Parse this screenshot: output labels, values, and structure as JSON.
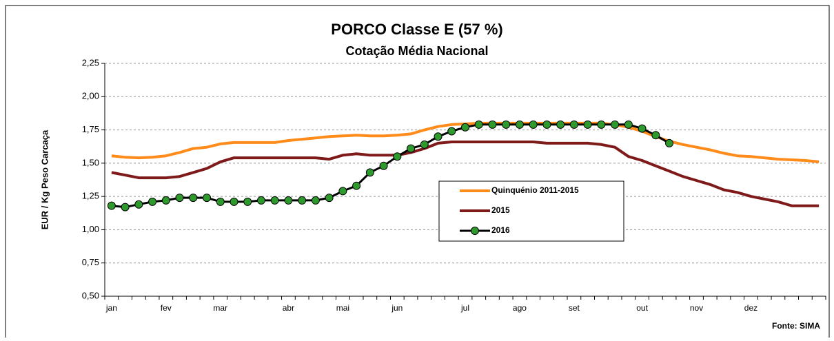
{
  "chart_data": {
    "type": "line",
    "title": "PORCO Classe E (57 %)",
    "subtitle": "Cotação Média Nacional",
    "y_label": "EUR / Kg Peso Carcaça",
    "source": "Fonte: SIMA",
    "categories": [
      "jan",
      null,
      null,
      null,
      "fev",
      null,
      null,
      null,
      "mar",
      null,
      null,
      null,
      null,
      "abr",
      null,
      null,
      null,
      "mai",
      null,
      null,
      null,
      "jun",
      null,
      null,
      null,
      null,
      "jul",
      null,
      null,
      null,
      "ago",
      null,
      null,
      null,
      "set",
      null,
      null,
      null,
      null,
      "out",
      null,
      null,
      null,
      "nov",
      null,
      null,
      null,
      "dez",
      null,
      null,
      null,
      null,
      null
    ],
    "ylim": [
      0.5,
      2.25
    ],
    "yticks": [
      {
        "value": 0.5,
        "label": "0,50"
      },
      {
        "value": 0.75,
        "label": "0,75"
      },
      {
        "value": 1.0,
        "label": "1,00"
      },
      {
        "value": 1.25,
        "label": "1,25"
      },
      {
        "value": 1.5,
        "label": "1,50"
      },
      {
        "value": 1.75,
        "label": "1,75"
      },
      {
        "value": 2.0,
        "label": "2,00"
      },
      {
        "value": 2.25,
        "label": "2,25"
      }
    ],
    "grid": true,
    "series": [
      {
        "name": "Quinquénio 2011-2015",
        "color": "#FF8C1A",
        "values": [
          1.555,
          1.545,
          1.54,
          1.545,
          1.555,
          1.58,
          1.61,
          1.62,
          1.645,
          1.655,
          1.655,
          1.655,
          1.655,
          1.67,
          1.68,
          1.69,
          1.7,
          1.705,
          1.71,
          1.705,
          1.705,
          1.71,
          1.72,
          1.75,
          1.775,
          1.79,
          1.795,
          1.8,
          1.8,
          1.8,
          1.8,
          1.8,
          1.8,
          1.8,
          1.8,
          1.8,
          1.8,
          1.79,
          1.77,
          1.74,
          1.7,
          1.665,
          1.64,
          1.62,
          1.6,
          1.575,
          1.555,
          1.55,
          1.54,
          1.53,
          1.525,
          1.52,
          1.51
        ]
      },
      {
        "name": "2015",
        "color": "#7F1A1A",
        "values": [
          1.43,
          1.41,
          1.39,
          1.39,
          1.39,
          1.4,
          1.43,
          1.46,
          1.51,
          1.54,
          1.54,
          1.54,
          1.54,
          1.54,
          1.54,
          1.54,
          1.53,
          1.56,
          1.57,
          1.56,
          1.56,
          1.56,
          1.58,
          1.61,
          1.65,
          1.66,
          1.66,
          1.66,
          1.66,
          1.66,
          1.66,
          1.66,
          1.65,
          1.65,
          1.65,
          1.65,
          1.64,
          1.62,
          1.55,
          1.52,
          1.48,
          1.44,
          1.4,
          1.37,
          1.34,
          1.3,
          1.28,
          1.25,
          1.23,
          1.21,
          1.18,
          1.18,
          1.18
        ]
      },
      {
        "name": "2016",
        "color": "#000000",
        "marker_color": "#2E9A2E",
        "values": [
          1.18,
          1.17,
          1.19,
          1.21,
          1.22,
          1.24,
          1.24,
          1.24,
          1.21,
          1.21,
          1.21,
          1.22,
          1.22,
          1.22,
          1.22,
          1.22,
          1.24,
          1.29,
          1.33,
          1.43,
          1.48,
          1.55,
          1.61,
          1.64,
          1.7,
          1.74,
          1.77,
          1.79,
          1.79,
          1.79,
          1.79,
          1.79,
          1.79,
          1.79,
          1.79,
          1.79,
          1.79,
          1.79,
          1.79,
          1.76,
          1.71,
          1.65,
          null,
          null,
          null,
          null,
          null,
          null,
          null,
          null,
          null,
          null,
          null
        ]
      }
    ]
  }
}
